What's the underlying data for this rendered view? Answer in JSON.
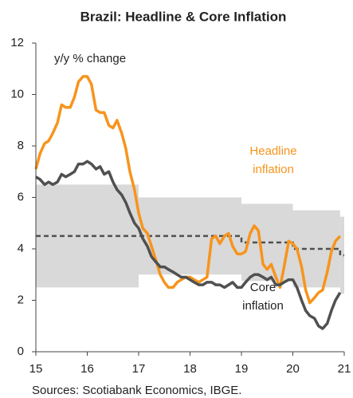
{
  "chart_data": {
    "type": "line",
    "title": "Brazil: Headline & Core Inflation",
    "y_label": "y/y % change",
    "source": "Sources: Scotiabank Economics, IBGE.",
    "xlim": [
      15,
      21
    ],
    "xticks": [
      15,
      16,
      17,
      18,
      19,
      20,
      21
    ],
    "ylim": [
      0,
      12
    ],
    "yticks": [
      0,
      2,
      4,
      6,
      8,
      10,
      12
    ],
    "x": [
      15.0,
      15.08,
      15.17,
      15.25,
      15.33,
      15.42,
      15.5,
      15.58,
      15.67,
      15.75,
      15.83,
      15.92,
      16.0,
      16.08,
      16.17,
      16.25,
      16.33,
      16.42,
      16.5,
      16.58,
      16.67,
      16.75,
      16.83,
      16.92,
      17.0,
      17.08,
      17.17,
      17.25,
      17.33,
      17.42,
      17.5,
      17.58,
      17.67,
      17.75,
      17.83,
      17.92,
      18.0,
      18.08,
      18.17,
      18.25,
      18.33,
      18.42,
      18.5,
      18.58,
      18.67,
      18.75,
      18.83,
      18.92,
      19.0,
      19.08,
      19.17,
      19.25,
      19.33,
      19.42,
      19.5,
      19.58,
      19.67,
      19.75,
      19.83,
      19.92,
      20.0,
      20.08,
      20.17,
      20.25,
      20.33,
      20.42,
      20.5,
      20.58,
      20.67,
      20.75,
      20.83,
      20.92
    ],
    "series": [
      {
        "color": "#f7941d",
        "values": [
          7.1,
          7.7,
          8.1,
          8.2,
          8.5,
          8.9,
          9.6,
          9.5,
          9.5,
          9.9,
          10.5,
          10.7,
          10.7,
          10.4,
          9.4,
          9.3,
          9.3,
          8.8,
          8.7,
          9.0,
          8.5,
          7.9,
          7.0,
          6.3,
          5.4,
          4.8,
          4.6,
          4.1,
          3.6,
          3.0,
          2.7,
          2.5,
          2.5,
          2.7,
          2.8,
          2.9,
          2.9,
          2.8,
          2.7,
          2.8,
          2.9,
          4.4,
          4.5,
          4.2,
          4.5,
          4.6,
          4.1,
          3.8,
          3.8,
          3.9,
          4.6,
          4.9,
          4.7,
          3.4,
          3.2,
          3.4,
          2.9,
          2.5,
          3.3,
          4.3,
          4.2,
          4.0,
          3.3,
          2.4,
          1.9,
          2.1,
          2.3,
          2.4,
          3.1,
          3.9,
          4.3,
          4.5
        ]
      },
      {
        "color": "#505050",
        "values": [
          6.8,
          6.7,
          6.5,
          6.6,
          6.5,
          6.6,
          6.9,
          6.8,
          6.9,
          7.0,
          7.3,
          7.3,
          7.4,
          7.3,
          7.1,
          7.2,
          6.9,
          7.0,
          6.6,
          6.3,
          6.1,
          5.8,
          5.4,
          5.0,
          4.8,
          4.4,
          4.1,
          3.7,
          3.5,
          3.3,
          3.3,
          3.2,
          3.1,
          3.0,
          2.9,
          2.9,
          2.8,
          2.7,
          2.6,
          2.6,
          2.7,
          2.7,
          2.6,
          2.6,
          2.5,
          2.6,
          2.7,
          2.5,
          2.5,
          2.7,
          2.9,
          3.0,
          3.0,
          2.9,
          2.8,
          2.9,
          2.6,
          2.6,
          2.7,
          2.8,
          2.8,
          2.5,
          2.0,
          1.6,
          1.4,
          1.3,
          1.0,
          0.9,
          1.1,
          1.6,
          2.0,
          2.3
        ]
      }
    ],
    "target_band": {
      "color": "#d9d9d9",
      "line_color": "#505050",
      "segments": [
        {
          "xlim": [
            15,
            17
          ],
          "low": 2.5,
          "high": 6.5,
          "mid": 4.5
        },
        {
          "xlim": [
            17,
            19
          ],
          "low": 3.0,
          "high": 6.0,
          "mid": 4.5
        },
        {
          "xlim": [
            19,
            20
          ],
          "low": 2.75,
          "high": 5.75,
          "mid": 4.25
        },
        {
          "xlim": [
            20,
            20.92
          ],
          "low": 2.5,
          "high": 5.5,
          "mid": 4.0
        },
        {
          "xlim": [
            20.92,
            21
          ],
          "low": 2.25,
          "high": 5.25,
          "mid": 3.75
        }
      ]
    },
    "annotations": [
      {
        "lines": [
          "Headline",
          "inflation"
        ],
        "color": "#f7941d"
      },
      {
        "lines": [
          "Core",
          "inflation"
        ],
        "color": "#222222"
      }
    ]
  }
}
